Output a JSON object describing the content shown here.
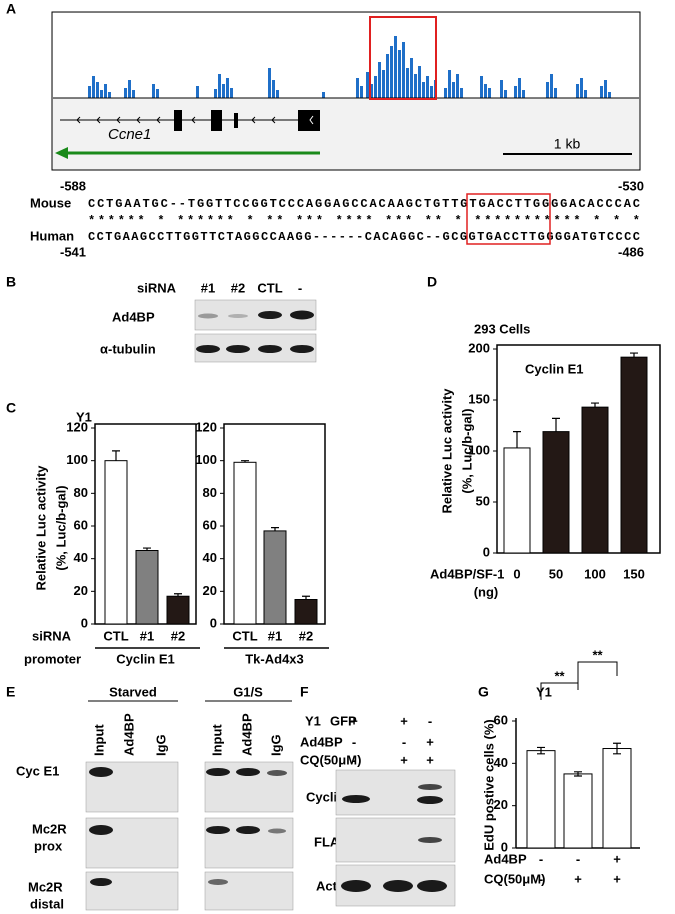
{
  "panel_labels": [
    "A",
    "B",
    "C",
    "D",
    "E",
    "F",
    "G"
  ],
  "panel_a": {
    "gene": "Ccne1",
    "scale": "1 kb",
    "positions": {
      "mouse_start": "-588",
      "mouse_end": "-530",
      "human_start": "-541",
      "human_end": "-486"
    },
    "mouse": {
      "name": "Mouse",
      "sequence": "CCTGAATGC--TGGTTCCGGTCCCAGGAGCCACAAGCTGTTGTGACCTTGGGGACACCCAC"
    },
    "conservation": "******  *  ******  *  **  ***   **** *** **  * ***********  * * *",
    "human": {
      "name": "Human",
      "sequence": "CCTGAAGCCTTGGTTCTAGGCCAAGG------CACAGGC--GCGGTGACCTTGGGGATGTCCCC"
    }
  },
  "panel_b": {
    "row_header": "siRNA",
    "lanes": [
      "#1",
      "#2",
      "CTL",
      "-"
    ],
    "blots": [
      "Ad4BP",
      "α-tubulin"
    ]
  },
  "panel_e": {
    "groups": [
      {
        "name": "Starved",
        "lanes": [
          "Input",
          "Ad4BP",
          "IgG"
        ]
      },
      {
        "name": "G1/S",
        "lanes": [
          "Input",
          "Ad4BP",
          "IgG"
        ]
      }
    ],
    "rows": [
      [
        "Cyc E1"
      ],
      [
        "Mc2R",
        "prox"
      ],
      [
        "Mc2R",
        "distal"
      ]
    ]
  },
  "panel_f": {
    "cell": "Y1",
    "conditions": [
      {
        "name": "GFP",
        "values": [
          "+",
          "+",
          "-"
        ]
      },
      {
        "name": "Ad4BP",
        "values": [
          "-",
          "-",
          "+"
        ]
      },
      {
        "name": "CQ(50μM)",
        "values": [
          "-",
          "+",
          "+"
        ]
      }
    ],
    "blots": [
      "Cyclin E",
      "FLAG",
      "Actin"
    ]
  },
  "chart_data": [
    {
      "type": "bar",
      "title": "Y1",
      "ylabel": [
        "Relative Luc activity",
        "(%, Luc/b-gal)"
      ],
      "x_row_label": "siRNA",
      "group_row_label": "promoter",
      "group": "Cyclin E1",
      "categories": [
        "CTL",
        "#1",
        "#2"
      ],
      "values": [
        100,
        45,
        17
      ],
      "errors": [
        6,
        1.5,
        1.5
      ],
      "colors": [
        "#ffffff",
        "#808080",
        "#231815"
      ],
      "ylim": [
        0,
        120
      ],
      "yticks": [
        0,
        20,
        40,
        60,
        80,
        100,
        120
      ]
    },
    {
      "type": "bar",
      "group": "Tk-Ad4x3",
      "categories": [
        "CTL",
        "#1",
        "#2"
      ],
      "values": [
        99,
        57,
        15
      ],
      "errors": [
        1,
        2,
        2
      ],
      "colors": [
        "#ffffff",
        "#808080",
        "#231815"
      ],
      "ylim": [
        0,
        120
      ],
      "yticks": [
        0,
        20,
        40,
        60,
        80,
        100,
        120
      ]
    },
    {
      "type": "bar",
      "title": "293 Cells",
      "inner_label": "Cyclin E1",
      "ylabel": [
        "Relative Luc activity",
        "(%, Luc/b-gal)"
      ],
      "x_row_label": "Ad4BP/SF-1",
      "x_unit": "(ng)",
      "categories": [
        "0",
        "50",
        "100",
        "150"
      ],
      "values": [
        103,
        119,
        143,
        192
      ],
      "errors": [
        16,
        13,
        4,
        4
      ],
      "colors": [
        "#ffffff",
        "#231815",
        "#231815",
        "#231815"
      ],
      "ylim": [
        0,
        200
      ],
      "yticks": [
        0,
        50,
        100,
        150,
        200
      ]
    },
    {
      "type": "bar",
      "title": "Y1",
      "ylabel": [
        "EdU postive cells (%)"
      ],
      "values": [
        46,
        35,
        47
      ],
      "errors": [
        1.5,
        1,
        2.5
      ],
      "colors": [
        "#ffffff",
        "#ffffff",
        "#ffffff"
      ],
      "conditions": [
        {
          "name": "Ad4BP",
          "values": [
            "-",
            "-",
            "+"
          ]
        },
        {
          "name": "CQ(50μM)",
          "values": [
            "-",
            "+",
            "+"
          ]
        }
      ],
      "annotations": [
        "**",
        "**"
      ],
      "ylim": [
        0,
        60
      ],
      "yticks": [
        0,
        20,
        40,
        60
      ]
    }
  ]
}
